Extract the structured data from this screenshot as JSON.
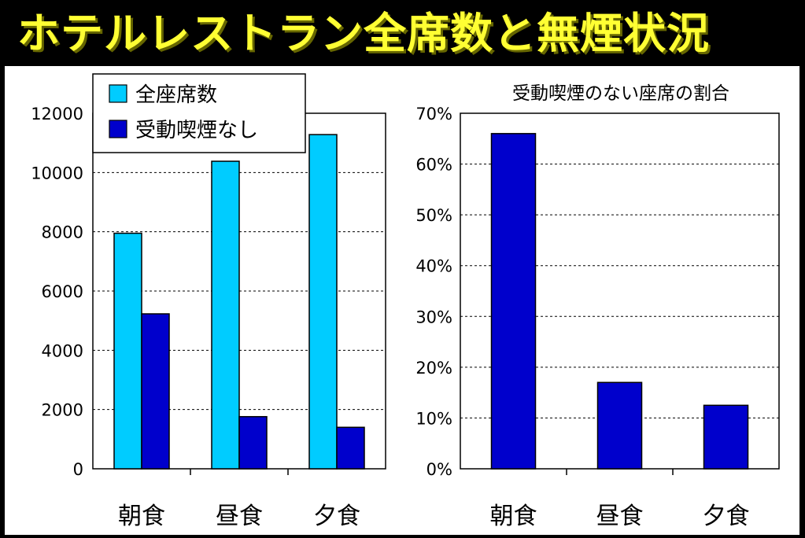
{
  "slide": {
    "title": "ホテルレストラン全席数と無煙状況"
  },
  "colors": {
    "background": "#000000",
    "title": "#ffff33",
    "series_total": "#00ccff",
    "series_nonsmoke": "#0000cc"
  },
  "chart_data": [
    {
      "type": "bar",
      "title": "",
      "categories": [
        "朝食",
        "昼食",
        "夕食"
      ],
      "series": [
        {
          "name": "全座席数",
          "values": [
            7950,
            10380,
            11280
          ]
        },
        {
          "name": "受動喫煙なし",
          "values": [
            5230,
            1760,
            1400
          ]
        }
      ],
      "ylim": [
        0,
        12000
      ],
      "yticks": [
        0,
        2000,
        4000,
        6000,
        8000,
        10000,
        12000
      ],
      "grid": true,
      "legend": "top-left"
    },
    {
      "type": "bar",
      "title": "受動喫煙のない座席の割合",
      "categories": [
        "朝食",
        "昼食",
        "夕食"
      ],
      "series": [
        {
          "values": [
            66,
            17,
            12.5
          ]
        }
      ],
      "ylim": [
        0,
        70
      ],
      "ytick_labels": [
        "0%",
        "10%",
        "20%",
        "30%",
        "40%",
        "50%",
        "60%",
        "70%"
      ],
      "grid": true
    }
  ]
}
